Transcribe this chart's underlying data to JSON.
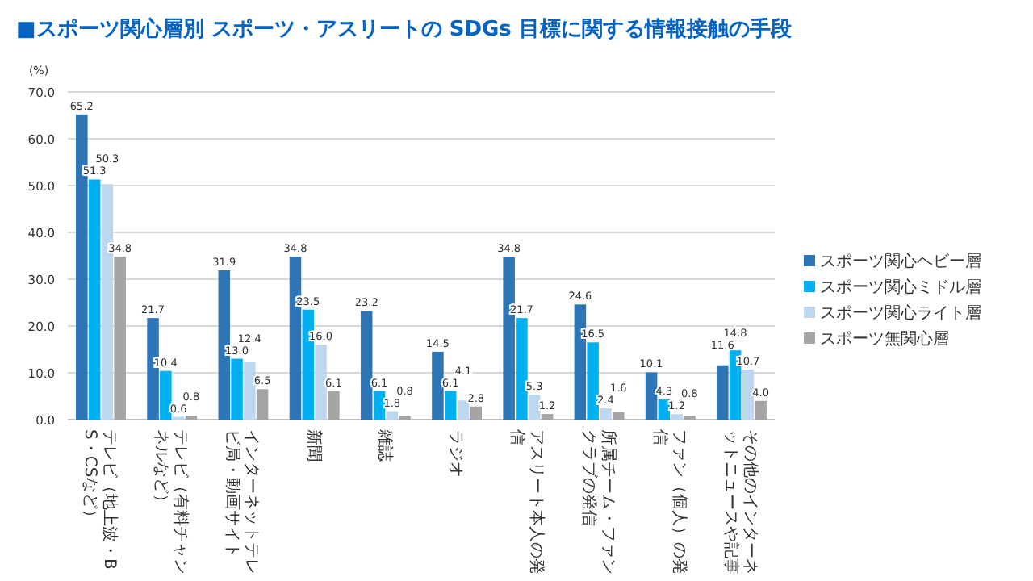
{
  "chart_data": {
    "type": "bar",
    "title": "■スポーツ関心層別 スポーツ・アスリートの SDGs 目標に関する情報接触の手段",
    "ylabel": "(%)",
    "categories": [
      "テレビ（地上波・BS・CSなど）",
      "テレビ（有料チャンネルなど）",
      "インターネットテレビ局・動画サイト",
      "新聞",
      "雑誌",
      "ラジオ",
      "アスリート本人の発信",
      "所属チーム・ファンクラブの発信",
      "ファン（個人）の発信",
      "その他のインターネットニュースや記事"
    ],
    "series": [
      {
        "name": "スポーツ関心ヘビー層",
        "color": "#2e75b6",
        "values": [
          65.2,
          21.7,
          31.9,
          34.8,
          23.2,
          14.5,
          34.8,
          24.6,
          10.1,
          11.6
        ],
        "value_labels": [
          "65.2",
          "21.7",
          "31.9",
          "34.8",
          "23.2",
          "14.5",
          "34.8",
          "24.6",
          "10.1",
          "11.6"
        ]
      },
      {
        "name": "スポーツ関心ミドル層",
        "color": "#00b0f0",
        "values": [
          51.3,
          10.4,
          13.0,
          23.5,
          6.1,
          6.1,
          21.7,
          16.5,
          4.3,
          14.8
        ],
        "value_labels": [
          "51.3",
          "10.4",
          "13.0",
          "23.5",
          "6.1",
          "6.1",
          "21.7",
          "16.5",
          "4.3",
          "14.8"
        ]
      },
      {
        "name": "スポーツ関心ライト層",
        "color": "#bdd7ee",
        "values": [
          50.3,
          0.6,
          12.4,
          16.0,
          1.8,
          4.1,
          5.3,
          2.4,
          1.2,
          10.7
        ],
        "value_labels": [
          "50.3",
          "0.6",
          "12.4",
          "16.0",
          "1.8",
          "4.1",
          "5.3",
          "2.4",
          "1.2",
          "10.7"
        ]
      },
      {
        "name": "スポーツ無関心層",
        "color": "#a5a5a5",
        "values": [
          34.8,
          0.8,
          6.5,
          6.1,
          0.8,
          2.8,
          1.2,
          1.6,
          0.8,
          4.0
        ],
        "value_labels": [
          "34.8",
          "0.8",
          "6.5",
          "6.1",
          "0.8",
          "2.8",
          "1.2",
          "1.6",
          "0.8",
          "4.0"
        ]
      }
    ],
    "ylim": [
      0,
      70
    ],
    "yticks": [
      {
        "value": 0,
        "label": "0.0"
      },
      {
        "value": 10,
        "label": "10.0"
      },
      {
        "value": 20,
        "label": "20.0"
      },
      {
        "value": 30,
        "label": "30.0"
      },
      {
        "value": 40,
        "label": "40.0"
      },
      {
        "value": 50,
        "label": "50.0"
      },
      {
        "value": 60,
        "label": "60.0"
      },
      {
        "value": 70,
        "label": "70.0"
      }
    ],
    "grid": "y",
    "legend": "right",
    "data_labels": true
  }
}
